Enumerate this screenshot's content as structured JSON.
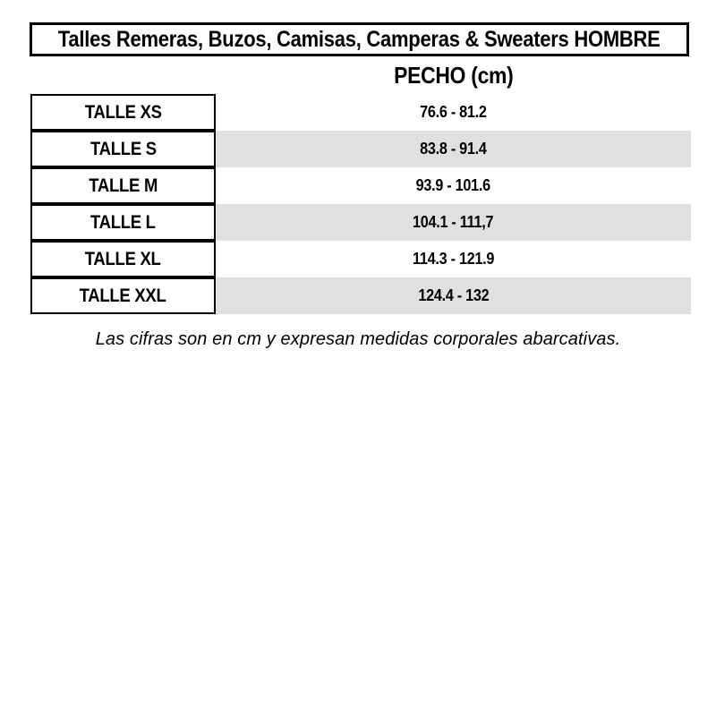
{
  "colors": {
    "background": "#ffffff",
    "text": "#000000",
    "border": "#000000",
    "alt_row_bg": "#e0e0e0"
  },
  "title": "Talles Remeras, Buzos, Camisas, Camperas & Sweaters HOMBRE",
  "column_header": "PECHO (cm)",
  "rows": [
    {
      "label": "TALLE XS",
      "value": "76.6 - 81.2"
    },
    {
      "label": "TALLE S",
      "value": "83.8 - 91.4"
    },
    {
      "label": "TALLE M",
      "value": "93.9 - 101.6"
    },
    {
      "label": "TALLE L",
      "value": "104.1 - 111,7"
    },
    {
      "label": "TALLE XL",
      "value": "114.3 - 121.9"
    },
    {
      "label": "TALLE XXL",
      "value": "124.4 - 132"
    }
  ],
  "footnote": "Las cifras son en cm y expresan medidas corporales abarcativas.",
  "chart_data": {
    "type": "table",
    "title": "Talles Remeras, Buzos, Camisas, Camperas & Sweaters HOMBRE",
    "columns": [
      "",
      "PECHO (cm)"
    ],
    "rows": [
      [
        "TALLE XS",
        "76.6 - 81.2"
      ],
      [
        "TALLE S",
        "83.8 - 91.4"
      ],
      [
        "TALLE M",
        "93.9 - 101.6"
      ],
      [
        "TALLE L",
        "104.1 - 111,7"
      ],
      [
        "TALLE XL",
        "114.3 - 121.9"
      ],
      [
        "TALLE XXL",
        "124.4 - 132"
      ]
    ],
    "chest_cm_ranges": {
      "XS": [
        76.6,
        81.2
      ],
      "S": [
        83.8,
        91.4
      ],
      "M": [
        93.9,
        101.6
      ],
      "L": [
        104.1,
        111.7
      ],
      "XL": [
        114.3,
        121.9
      ],
      "XXL": [
        124.4,
        132
      ]
    },
    "footnote": "Las cifras son en cm y expresan medidas corporales abarcativas.",
    "layout": {
      "alternating_row_shading": true,
      "first_column_bordered": true,
      "title_boxed": true
    }
  }
}
